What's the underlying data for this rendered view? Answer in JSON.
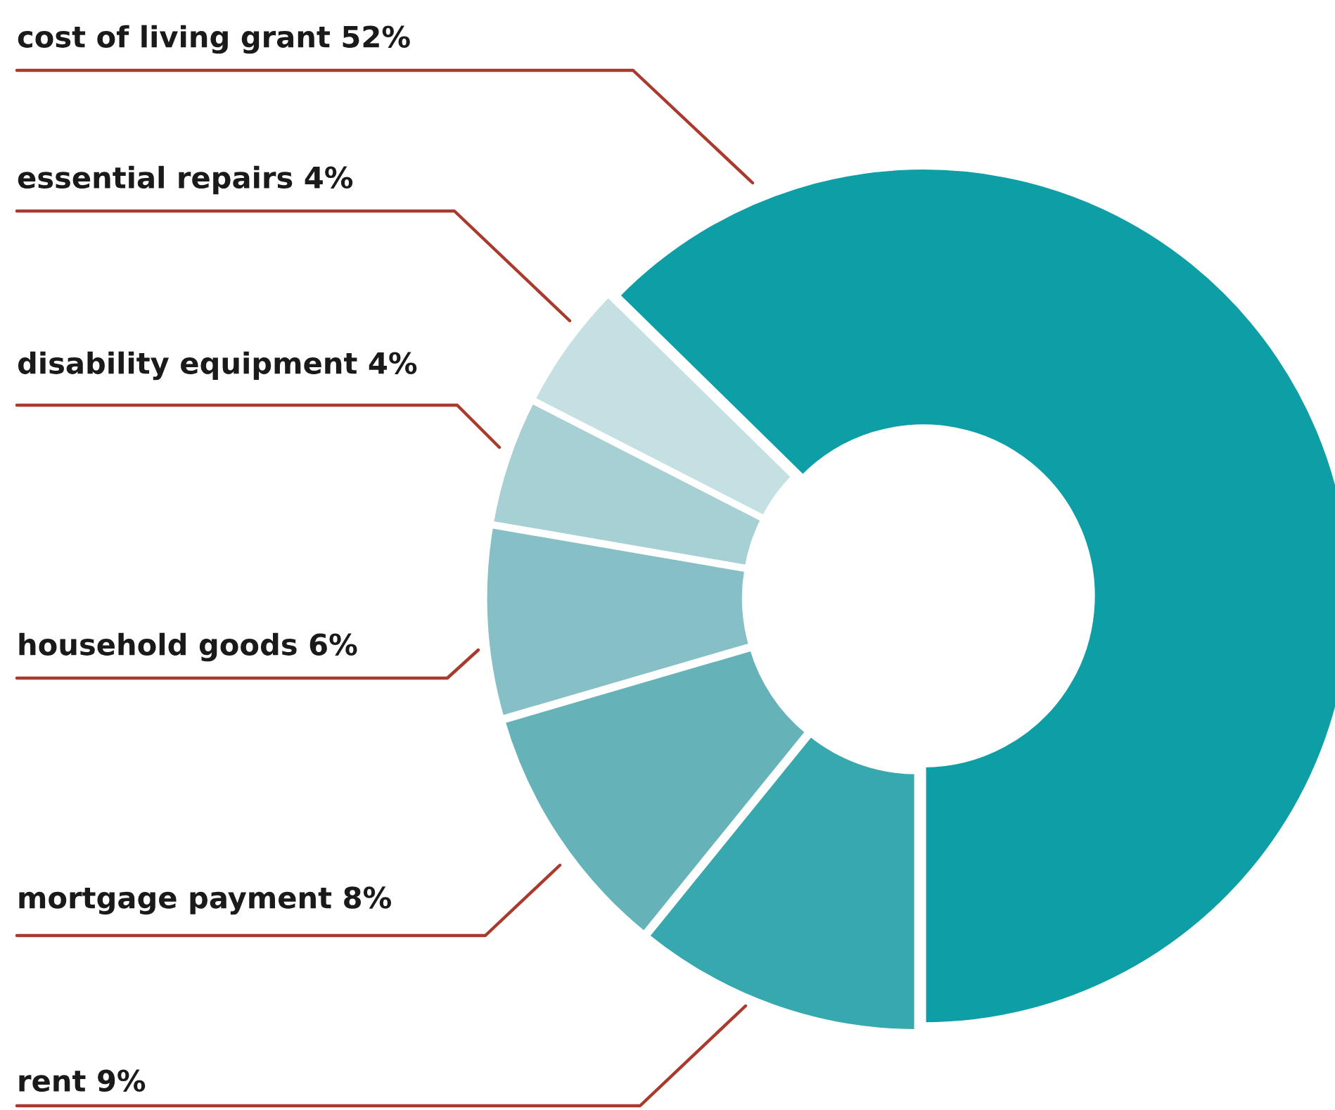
{
  "chart_data": {
    "type": "donut",
    "categories": [
      "cost of living grant",
      "essential repairs",
      "disability equipment",
      "household goods",
      "mortgage payment",
      "rent"
    ],
    "values": [
      52,
      4,
      4,
      6,
      8,
      9
    ],
    "value_labels": [
      "52%",
      "4%",
      "4%",
      "6%",
      "8%",
      "9%"
    ],
    "colors": [
      "#0e9ea6",
      "#c5e0e3",
      "#a7d0d4",
      "#86c0c6",
      "#65b3b8",
      "#36a8ae"
    ]
  }
}
